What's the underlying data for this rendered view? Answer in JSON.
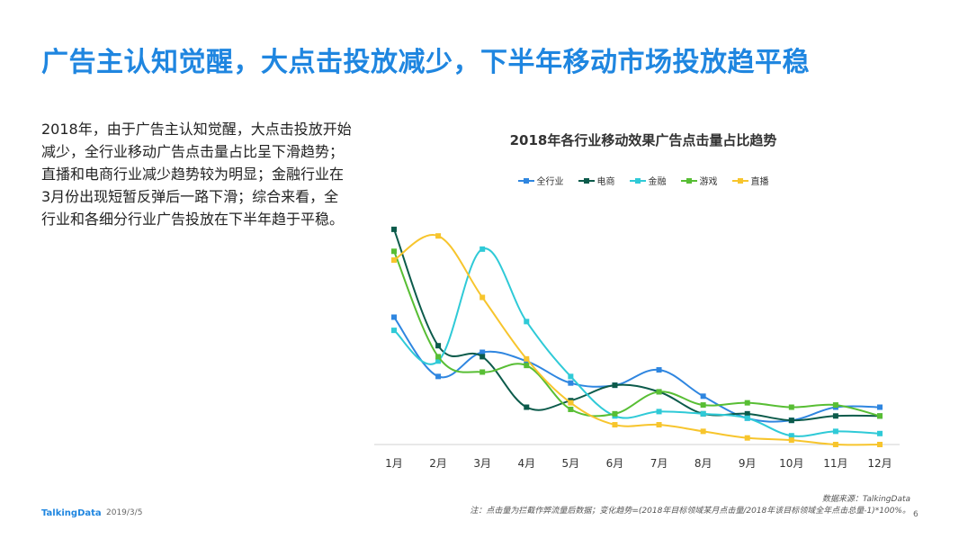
{
  "page": {
    "title": "广告主认知觉醒，大点击投放减少，下半年移动市场投放趋平稳",
    "body_text": "2018年，由于广告主认知觉醒，大点击投放开始减少，全行业移动广告点击量占比呈下滑趋势；直播和电商行业减少趋势较为明显；金融行业在3月份出现短暂反弹后一路下滑；综合来看，全行业和各细分行业广告投放在下半年趋于平稳。",
    "footer_brand": "TalkingData",
    "footer_date": "2019/3/5",
    "source": "数据来源：TalkingData",
    "note": "注：点击量为拦截作弊流量后数据；变化趋势=(2018年目标领域某月点击量/2018年该目标领域全年点击总量-1)*100%。",
    "page_number": "6"
  },
  "chart_data": {
    "type": "line",
    "title": "2018年各行业移动效果广告点击量占比趋势",
    "categories": [
      "1月",
      "2月",
      "3月",
      "4月",
      "5月",
      "6月",
      "7月",
      "8月",
      "9月",
      "10月",
      "11月",
      "12月"
    ],
    "ylim": [
      0,
      100
    ],
    "grid": false,
    "legend": "top",
    "series": [
      {
        "name": "全行业",
        "color": "#2f86e0",
        "values": [
          58,
          31,
          42,
          38,
          28,
          27,
          34,
          22,
          12,
          11,
          17,
          17
        ]
      },
      {
        "name": "电商",
        "color": "#0c5b4b",
        "values": [
          98,
          45,
          40,
          17,
          20,
          27,
          24,
          14,
          14,
          11,
          13,
          13
        ]
      },
      {
        "name": "金融",
        "color": "#2fcad7",
        "values": [
          52,
          38,
          89,
          56,
          31,
          13,
          15,
          14,
          12,
          4,
          6,
          5
        ]
      },
      {
        "name": "游戏",
        "color": "#58be34",
        "values": [
          88,
          40,
          33,
          36,
          16,
          14,
          24,
          18,
          19,
          17,
          18,
          13
        ]
      },
      {
        "name": "直播",
        "color": "#f7c52d",
        "values": [
          84,
          95,
          67,
          39,
          19,
          9,
          9,
          6,
          3,
          2,
          0,
          0
        ]
      }
    ]
  }
}
